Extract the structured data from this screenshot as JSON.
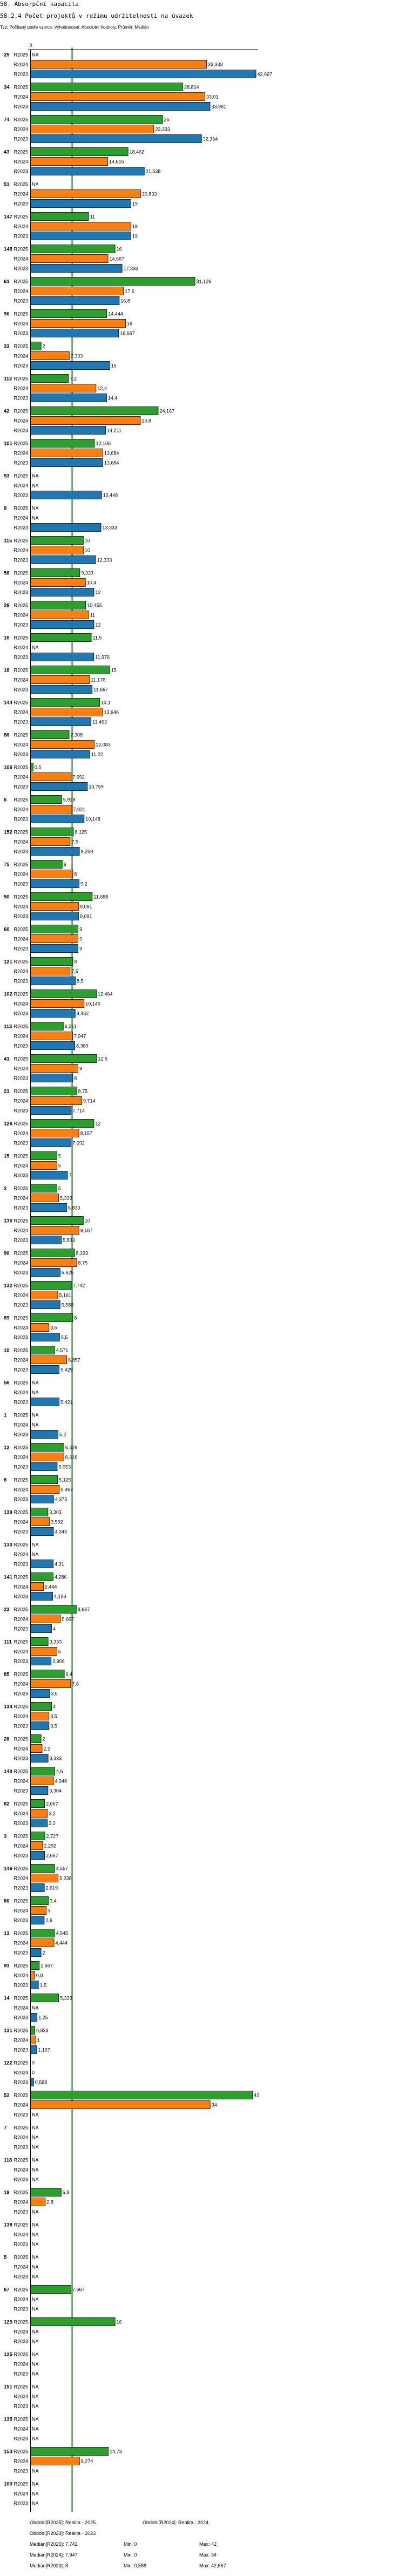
{
  "header": {
    "title": "58. Absorpční kapacita",
    "subtitle": "58.2.4 Počet projektů v režimu udržitelnosti na úvazek",
    "meta": "Typ: Počítaný podle vzorce, Vyhodnocení: Absolutní hodnoty, Průměr: Medián"
  },
  "chart_data": {
    "type": "bar",
    "orientation": "horizontal",
    "title": "58.2.4 Počet projektů v režimu udržitelnosti na úvazek",
    "axis_zero_label": "0",
    "xlim": [
      0,
      42.667
    ],
    "series": [
      {
        "name": "R2025",
        "color": "#2ca02c",
        "median": 7.742
      },
      {
        "name": "R2024",
        "color": "#ff7f0e",
        "median": 7.947
      },
      {
        "name": "R2023",
        "color": "#1f77b4",
        "median": 8
      }
    ],
    "na_label": "NA",
    "groups": [
      {
        "label": "25",
        "values": [
          null,
          33.333,
          42.667
        ]
      },
      {
        "label": "34",
        "values": [
          28.814,
          33.01,
          33.981
        ]
      },
      {
        "label": "74",
        "values": [
          25,
          23.333,
          32.364
        ]
      },
      {
        "label": "43",
        "values": [
          18.462,
          14.615,
          21.538
        ]
      },
      {
        "label": "51",
        "values": [
          null,
          20.833,
          19
        ]
      },
      {
        "label": "147",
        "values": [
          11,
          19,
          19
        ]
      },
      {
        "label": "145",
        "values": [
          16,
          14.667,
          17.333
        ]
      },
      {
        "label": "61",
        "values": [
          31.126,
          17.6,
          16.8
        ]
      },
      {
        "label": "96",
        "values": [
          14.444,
          18,
          16.667
        ]
      },
      {
        "label": "33",
        "values": [
          2,
          7.333,
          15
        ]
      },
      {
        "label": "112",
        "values": [
          7.2,
          12.4,
          14.4
        ]
      },
      {
        "label": "42",
        "values": [
          24.167,
          20.8,
          14.211
        ]
      },
      {
        "label": "101",
        "values": [
          12.105,
          13.684,
          13.684
        ]
      },
      {
        "label": "53",
        "values": [
          null,
          null,
          13.448
        ]
      },
      {
        "label": "9",
        "values": [
          null,
          null,
          13.333
        ]
      },
      {
        "label": "115",
        "values": [
          10,
          10,
          12.333
        ]
      },
      {
        "label": "58",
        "values": [
          9.333,
          10.4,
          12
        ]
      },
      {
        "label": "26",
        "values": [
          10.455,
          11,
          12
        ]
      },
      {
        "label": "16",
        "values": [
          11.5,
          null,
          11.976
        ]
      },
      {
        "label": "18",
        "values": [
          15,
          11.176,
          11.667
        ]
      },
      {
        "label": "144",
        "values": [
          13.1,
          13.646,
          11.463
        ]
      },
      {
        "label": "88",
        "values": [
          7.308,
          12.083,
          11.22
        ]
      },
      {
        "label": "106",
        "values": [
          0.5,
          7.692,
          10.769
        ]
      },
      {
        "label": "6",
        "values": [
          5.919,
          7.821,
          10.148
        ]
      },
      {
        "label": "152",
        "values": [
          8.125,
          7.5,
          9.259
        ]
      },
      {
        "label": "75",
        "values": [
          6,
          8,
          9.2
        ]
      },
      {
        "label": "50",
        "values": [
          11.688,
          9.091,
          9.091
        ]
      },
      {
        "label": "60",
        "values": [
          9,
          9,
          9
        ]
      },
      {
        "label": "121",
        "values": [
          8,
          7.5,
          8.5
        ]
      },
      {
        "label": "102",
        "values": [
          12.464,
          10.145,
          8.462
        ]
      },
      {
        "label": "113",
        "values": [
          6.211,
          7.947,
          8.389
        ]
      },
      {
        "label": "41",
        "values": [
          12.5,
          9,
          8
        ]
      },
      {
        "label": "21",
        "values": [
          8.75,
          9.714,
          7.714
        ]
      },
      {
        "label": "126",
        "values": [
          12,
          9.157,
          7.692
        ]
      },
      {
        "label": "15",
        "values": [
          5,
          5,
          7
        ]
      },
      {
        "label": "2",
        "values": [
          5,
          5.333,
          6.833
        ]
      },
      {
        "label": "136",
        "values": [
          10,
          9.167,
          5.833
        ]
      },
      {
        "label": "90",
        "values": [
          8.333,
          8.75,
          5.625
        ]
      },
      {
        "label": "132",
        "values": [
          7.742,
          5.161,
          5.588
        ]
      },
      {
        "label": "89",
        "values": [
          8,
          3.5,
          5.5
        ]
      },
      {
        "label": "10",
        "values": [
          4.571,
          6.857,
          5.429
        ]
      },
      {
        "label": "56",
        "values": [
          null,
          null,
          5.421
        ]
      },
      {
        "label": "1",
        "values": [
          null,
          null,
          5.2
        ]
      },
      {
        "label": "12",
        "values": [
          6.329,
          6.316,
          5.053
        ]
      },
      {
        "label": "8",
        "values": [
          5.125,
          5.467,
          4.375
        ]
      },
      {
        "label": "139",
        "values": [
          3.303,
          3.592,
          4.343
        ]
      },
      {
        "label": "130",
        "values": [
          null,
          null,
          4.31
        ]
      },
      {
        "label": "141",
        "values": [
          4.286,
          2.444,
          4.186
        ]
      },
      {
        "label": "23",
        "values": [
          8.667,
          5.667,
          4
        ]
      },
      {
        "label": "111",
        "values": [
          3.333,
          5,
          3.906
        ]
      },
      {
        "label": "85",
        "values": [
          6.4,
          7.6,
          3.6
        ]
      },
      {
        "label": "134",
        "values": [
          4,
          3.5,
          3.5
        ]
      },
      {
        "label": "28",
        "values": [
          2,
          2.2,
          3.333
        ]
      },
      {
        "label": "140",
        "values": [
          4.6,
          4.348,
          3.304
        ]
      },
      {
        "label": "82",
        "values": [
          2.667,
          3.2,
          3.2
        ]
      },
      {
        "label": "3",
        "values": [
          2.727,
          2.292,
          2.667
        ]
      },
      {
        "label": "146",
        "values": [
          4.557,
          5.238,
          2.619
        ]
      },
      {
        "label": "86",
        "values": [
          3.4,
          3,
          2.6
        ]
      },
      {
        "label": "13",
        "values": [
          4.545,
          4.444,
          2
        ]
      },
      {
        "label": "93",
        "values": [
          1.667,
          0.8,
          1.5
        ]
      },
      {
        "label": "14",
        "values": [
          5.333,
          null,
          1.25
        ]
      },
      {
        "label": "131",
        "values": [
          0.833,
          1,
          1.167
        ]
      },
      {
        "label": "122",
        "values": [
          0,
          0,
          0.588
        ]
      },
      {
        "label": "52",
        "values": [
          42,
          34,
          null
        ]
      },
      {
        "label": "7",
        "values": [
          null,
          null,
          null
        ]
      },
      {
        "label": "118",
        "values": [
          null,
          null,
          null
        ]
      },
      {
        "label": "19",
        "values": [
          5.8,
          2.8,
          null
        ]
      },
      {
        "label": "138",
        "values": [
          null,
          null,
          null
        ]
      },
      {
        "label": "5",
        "values": [
          null,
          null,
          null
        ]
      },
      {
        "label": "67",
        "values": [
          7.667,
          null,
          null
        ]
      },
      {
        "label": "129",
        "values": [
          16,
          null,
          null
        ]
      },
      {
        "label": "125",
        "values": [
          null,
          null,
          null
        ]
      },
      {
        "label": "151",
        "values": [
          null,
          null,
          null
        ]
      },
      {
        "label": "135",
        "values": [
          null,
          null,
          null
        ]
      },
      {
        "label": "153",
        "values": [
          14.73,
          9.274,
          null
        ]
      },
      {
        "label": "100",
        "values": [
          null,
          null,
          null
        ]
      }
    ]
  },
  "legend": {
    "period_r2025": "Období[R2025]: Realita - 2025",
    "period_r2024": "Období[R2024]: Realita - 2024",
    "period_r2023": "Období[R2023]: Realita - 2023",
    "stats": [
      {
        "median": "Medián[R2025]: 7,742",
        "min": "Min: 0",
        "max": "Max: 42"
      },
      {
        "median": "Medián[R2024]: 7,947",
        "min": "Min: 0",
        "max": "Max: 34"
      },
      {
        "median": "Medián[R2023]: 8",
        "min": "Min: 0,588",
        "max": "Max: 42,667"
      }
    ]
  }
}
